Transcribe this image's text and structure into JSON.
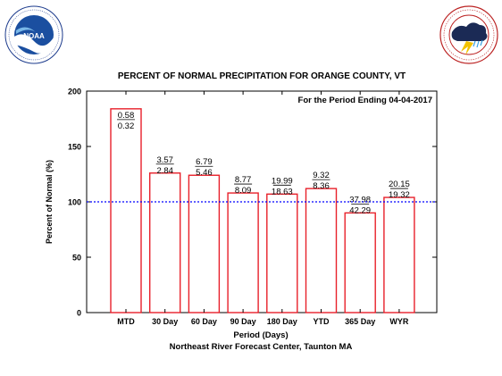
{
  "logos": {
    "left": {
      "name": "noaa-logo",
      "center_text": "NOAA",
      "ring_text": "NATIONAL OCEANIC AND ATMOSPHERIC ADMINISTRATION · U.S. DEPARTMENT OF COMMERCE"
    },
    "right": {
      "name": "nws-logo",
      "ring_text": "NATIONAL WEATHER SERVICE"
    }
  },
  "colors": {
    "bar_edge": "#e8202a",
    "normal_line": "#0000ff",
    "axis": "#000000"
  },
  "chart_data": {
    "type": "bar",
    "title": "PERCENT OF NORMAL PRECIPITATION FOR ORANGE COUNTY, VT",
    "subtitle": "For the Period Ending 04-04-2017",
    "xlabel": "Period (Days)",
    "ylabel": "Percent of Normal (%)",
    "source": "Northeast River Forecast Center, Taunton MA",
    "ylim": [
      0,
      200
    ],
    "yticks": [
      "0",
      "50",
      "100",
      "150",
      "200"
    ],
    "normal_line": 100,
    "categories": [
      "MTD",
      "30 Day",
      "60 Day",
      "90 Day",
      "180 Day",
      "YTD",
      "365 Day",
      "WYR"
    ],
    "values": [
      184,
      126,
      124,
      108,
      107,
      112,
      90,
      104
    ],
    "observed": [
      "0.58",
      "3.57",
      "6.79",
      "8.77",
      "19.99",
      "9.32",
      "37.98",
      "20.15"
    ],
    "normal": [
      "0.32",
      "2.84",
      "5.46",
      "8.09",
      "18.63",
      "8.36",
      "42.29",
      "19.32"
    ]
  }
}
